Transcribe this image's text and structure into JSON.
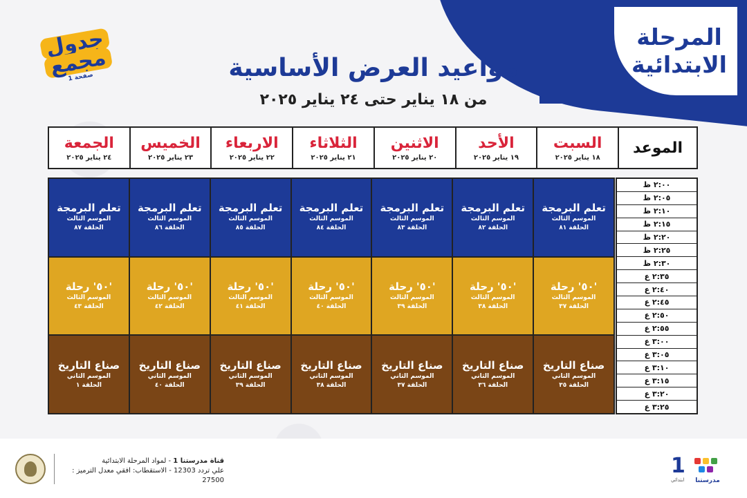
{
  "stage": {
    "line1": "المرحلة",
    "line2": "الابتدائية"
  },
  "sticker": {
    "line1": "جدول",
    "line2": "مجمع",
    "line3": "صفحة 1"
  },
  "title": "مواعيد العرض الأساسية",
  "subtitle": "من ١٨ يناير حتى ٢٤ يناير ٢٠٢٥",
  "header": {
    "mawid": "الموعد",
    "days": [
      {
        "name": "السبت",
        "date": "١٨ يناير ٢٠٢٥"
      },
      {
        "name": "الأحد",
        "date": "١٩ يناير ٢٠٢٥"
      },
      {
        "name": "الاثنين",
        "date": "٢٠ يناير ٢٠٢٥"
      },
      {
        "name": "الثلاثاء",
        "date": "٢١ يناير ٢٠٢٥"
      },
      {
        "name": "الاربعاء",
        "date": "٢٢ يناير ٢٠٢٥"
      },
      {
        "name": "الخميس",
        "date": "٢٣ يناير ٢٠٢٥"
      },
      {
        "name": "الجمعة",
        "date": "٢٤ يناير ٢٠٢٥"
      }
    ]
  },
  "times": [
    "٢:٠٠ ظ",
    "٢:٠٥ ظ",
    "٢:١٠ ظ",
    "٢:١٥ ظ",
    "٢:٢٠ ظ",
    "٢:٢٥ ظ",
    "٢:٣٠ ظ",
    "٢:٣٥ ع",
    "٢:٤٠ ع",
    "٢:٤٥ ع",
    "٢:٥٠ ع",
    "٢:٥٥ ع",
    "٣:٠٠ ع",
    "٣:٠٥ ع",
    "٣:١٠ ع",
    "٣:١٥ ع",
    "٣:٢٠ ع",
    "٣:٢٥ ع"
  ],
  "columns": [
    [
      {
        "prog": "تعلم البرمجة",
        "season": "الموسم الثالث",
        "ep": "الحلقة ٨١"
      },
      {
        "prog": "'٥٠' رحلة",
        "season": "الموسم الثالث",
        "ep": "الحلقة ٣٧"
      },
      {
        "prog": "صناع التاريخ",
        "season": "الموسم الثاني",
        "ep": "الحلقة ٣٥"
      }
    ],
    [
      {
        "prog": "تعلم البرمجة",
        "season": "الموسم الثالث",
        "ep": "الحلقة ٨٢"
      },
      {
        "prog": "'٥٠' رحلة",
        "season": "الموسم الثالث",
        "ep": "الحلقة ٣٨"
      },
      {
        "prog": "صناع التاريخ",
        "season": "الموسم الثاني",
        "ep": "الحلقة ٣٦"
      }
    ],
    [
      {
        "prog": "تعلم البرمجة",
        "season": "الموسم الثالث",
        "ep": "الحلقة ٨٣"
      },
      {
        "prog": "'٥٠' رحلة",
        "season": "الموسم الثالث",
        "ep": "الحلقة ٣٩"
      },
      {
        "prog": "صناع التاريخ",
        "season": "الموسم الثاني",
        "ep": "الحلقة ٣٧"
      }
    ],
    [
      {
        "prog": "تعلم البرمجة",
        "season": "الموسم الثالث",
        "ep": "الحلقة ٨٤"
      },
      {
        "prog": "'٥٠' رحلة",
        "season": "الموسم الثالث",
        "ep": "الحلقة ٤٠"
      },
      {
        "prog": "صناع التاريخ",
        "season": "الموسم الثاني",
        "ep": "الحلقة ٣٨"
      }
    ],
    [
      {
        "prog": "تعلم البرمجة",
        "season": "الموسم الثالث",
        "ep": "الحلقة ٨٥"
      },
      {
        "prog": "'٥٠' رحلة",
        "season": "الموسم الثالث",
        "ep": "الحلقة ٤١"
      },
      {
        "prog": "صناع التاريخ",
        "season": "الموسم الثاني",
        "ep": "الحلقة ٣٩"
      }
    ],
    [
      {
        "prog": "تعلم البرمجة",
        "season": "الموسم الثالث",
        "ep": "الحلقة ٨٦"
      },
      {
        "prog": "'٥٠' رحلة",
        "season": "الموسم الثالث",
        "ep": "الحلقة ٤٢"
      },
      {
        "prog": "صناع التاريخ",
        "season": "الموسم الثاني",
        "ep": "الحلقة ٤٠"
      }
    ],
    [
      {
        "prog": "تعلم البرمجة",
        "season": "الموسم الثالث",
        "ep": "الحلقة ٨٧"
      },
      {
        "prog": "'٥٠' رحلة",
        "season": "الموسم الثالث",
        "ep": "الحلقة ٤٣"
      },
      {
        "prog": "صناع التاريخ",
        "season": "الموسم الثاني",
        "ep": "الحلقة ١"
      }
    ]
  ],
  "colors": {
    "blue": "#1d3a97",
    "gold": "#dfa622",
    "brown": "#7a4516",
    "red": "#d9243a"
  },
  "footer": {
    "line1_bold": "قناة مدرستنا 1",
    "line1_rest": " - لمواد المرحلة الابتدائية",
    "line2": "علي تردد 12303 - الاستقطاب: افقي معدل الترميز : 27500",
    "logo_num": "1",
    "logo_sub": "ابتدائي",
    "logo_name": "مدرستنا"
  }
}
